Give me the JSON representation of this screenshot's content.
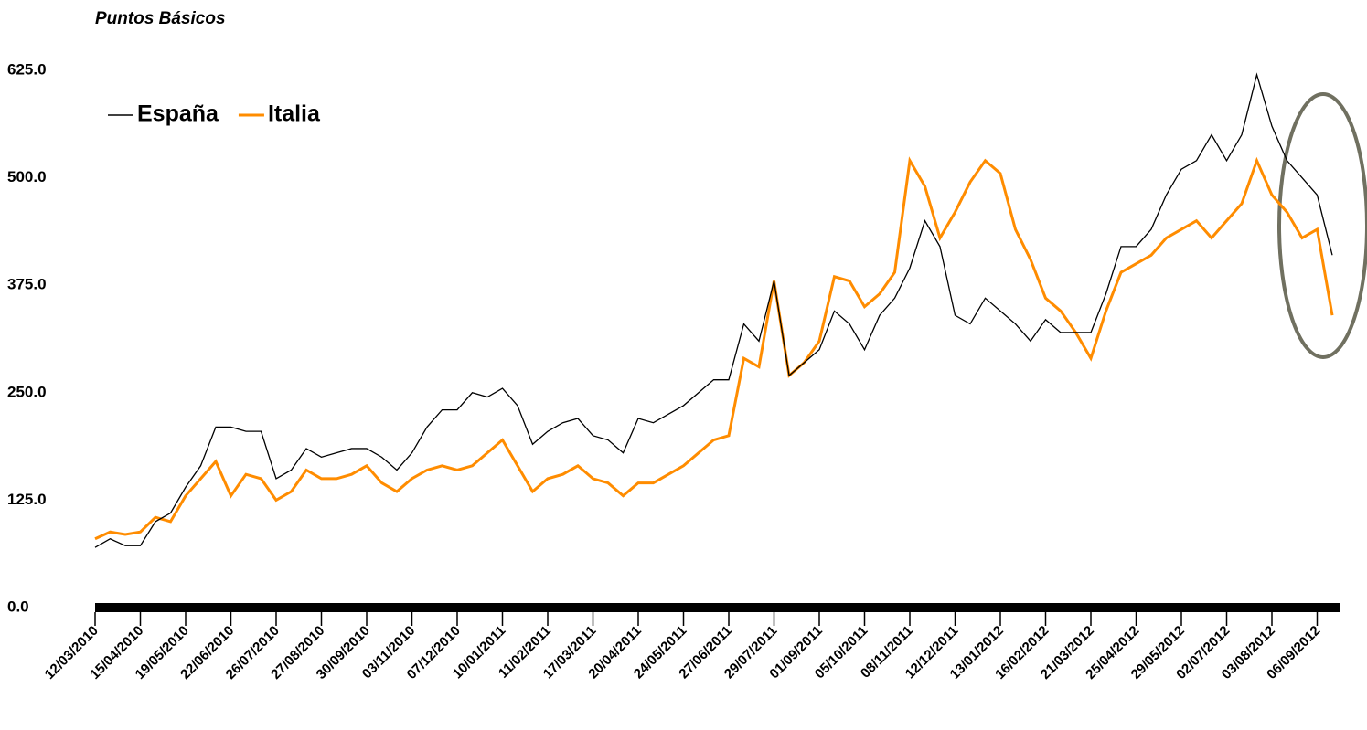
{
  "chart_data": {
    "type": "line",
    "title": "Puntos Básicos",
    "categories": [
      "12/03/2010",
      null,
      null,
      "15/04/2010",
      null,
      null,
      "19/05/2010",
      null,
      null,
      "22/06/2010",
      null,
      null,
      "26/07/2010",
      null,
      null,
      "27/08/2010",
      null,
      null,
      "30/09/2010",
      null,
      null,
      "03/11/2010",
      null,
      null,
      "07/12/2010",
      null,
      null,
      "10/01/2011",
      null,
      null,
      "11/02/2011",
      null,
      null,
      "17/03/2011",
      null,
      null,
      "20/04/2011",
      null,
      null,
      "24/05/2011",
      null,
      null,
      "27/06/2011",
      null,
      null,
      "29/07/2011",
      null,
      null,
      "01/09/2011",
      null,
      null,
      "05/10/2011",
      null,
      null,
      "08/11/2011",
      null,
      null,
      "12/12/2011",
      null,
      null,
      "13/01/2012",
      null,
      null,
      "16/02/2012",
      null,
      null,
      "21/03/2012",
      null,
      null,
      "25/04/2012",
      null,
      null,
      "29/05/2012",
      null,
      null,
      "02/07/2012",
      null,
      null,
      "03/08/2012",
      null,
      null,
      "06/09/2012",
      null
    ],
    "series": [
      {
        "name": "España",
        "color": "#000000",
        "values": [
          70,
          80,
          72,
          72,
          100,
          110,
          140,
          165,
          210,
          210,
          205,
          205,
          150,
          160,
          185,
          175,
          180,
          185,
          185,
          175,
          160,
          180,
          210,
          230,
          230,
          250,
          245,
          255,
          235,
          190,
          205,
          215,
          220,
          200,
          195,
          180,
          220,
          215,
          225,
          235,
          250,
          265,
          265,
          330,
          310,
          380,
          270,
          285,
          300,
          345,
          330,
          300,
          340,
          360,
          395,
          450,
          420,
          340,
          330,
          360,
          345,
          330,
          310,
          335,
          320,
          320,
          320,
          365,
          420,
          420,
          440,
          480,
          510,
          520,
          550,
          520,
          550,
          620,
          560,
          520,
          500,
          480,
          410
        ]
      },
      {
        "name": "Italia",
        "color": "#ff8c00",
        "values": [
          80,
          88,
          85,
          88,
          105,
          100,
          130,
          150,
          170,
          130,
          155,
          150,
          125,
          135,
          160,
          150,
          150,
          155,
          165,
          145,
          135,
          150,
          160,
          165,
          160,
          165,
          180,
          195,
          165,
          135,
          150,
          155,
          165,
          150,
          145,
          130,
          145,
          145,
          155,
          165,
          180,
          195,
          200,
          290,
          280,
          380,
          270,
          285,
          310,
          385,
          380,
          350,
          365,
          390,
          520,
          490,
          430,
          460,
          495,
          520,
          505,
          440,
          405,
          360,
          345,
          320,
          290,
          345,
          390,
          400,
          410,
          430,
          440,
          450,
          430,
          450,
          470,
          520,
          480,
          460,
          430,
          440,
          340
        ]
      }
    ],
    "ylim": [
      0,
      625
    ],
    "yticks": [
      {
        "value": 0,
        "label": "0.0"
      },
      {
        "value": 125,
        "label": "125.0"
      },
      {
        "value": 250,
        "label": "250.0"
      },
      {
        "value": 375,
        "label": "375.0"
      },
      {
        "value": 500,
        "label": "500.0"
      },
      {
        "value": 625,
        "label": "625.0"
      }
    ],
    "legend": "upper left"
  }
}
